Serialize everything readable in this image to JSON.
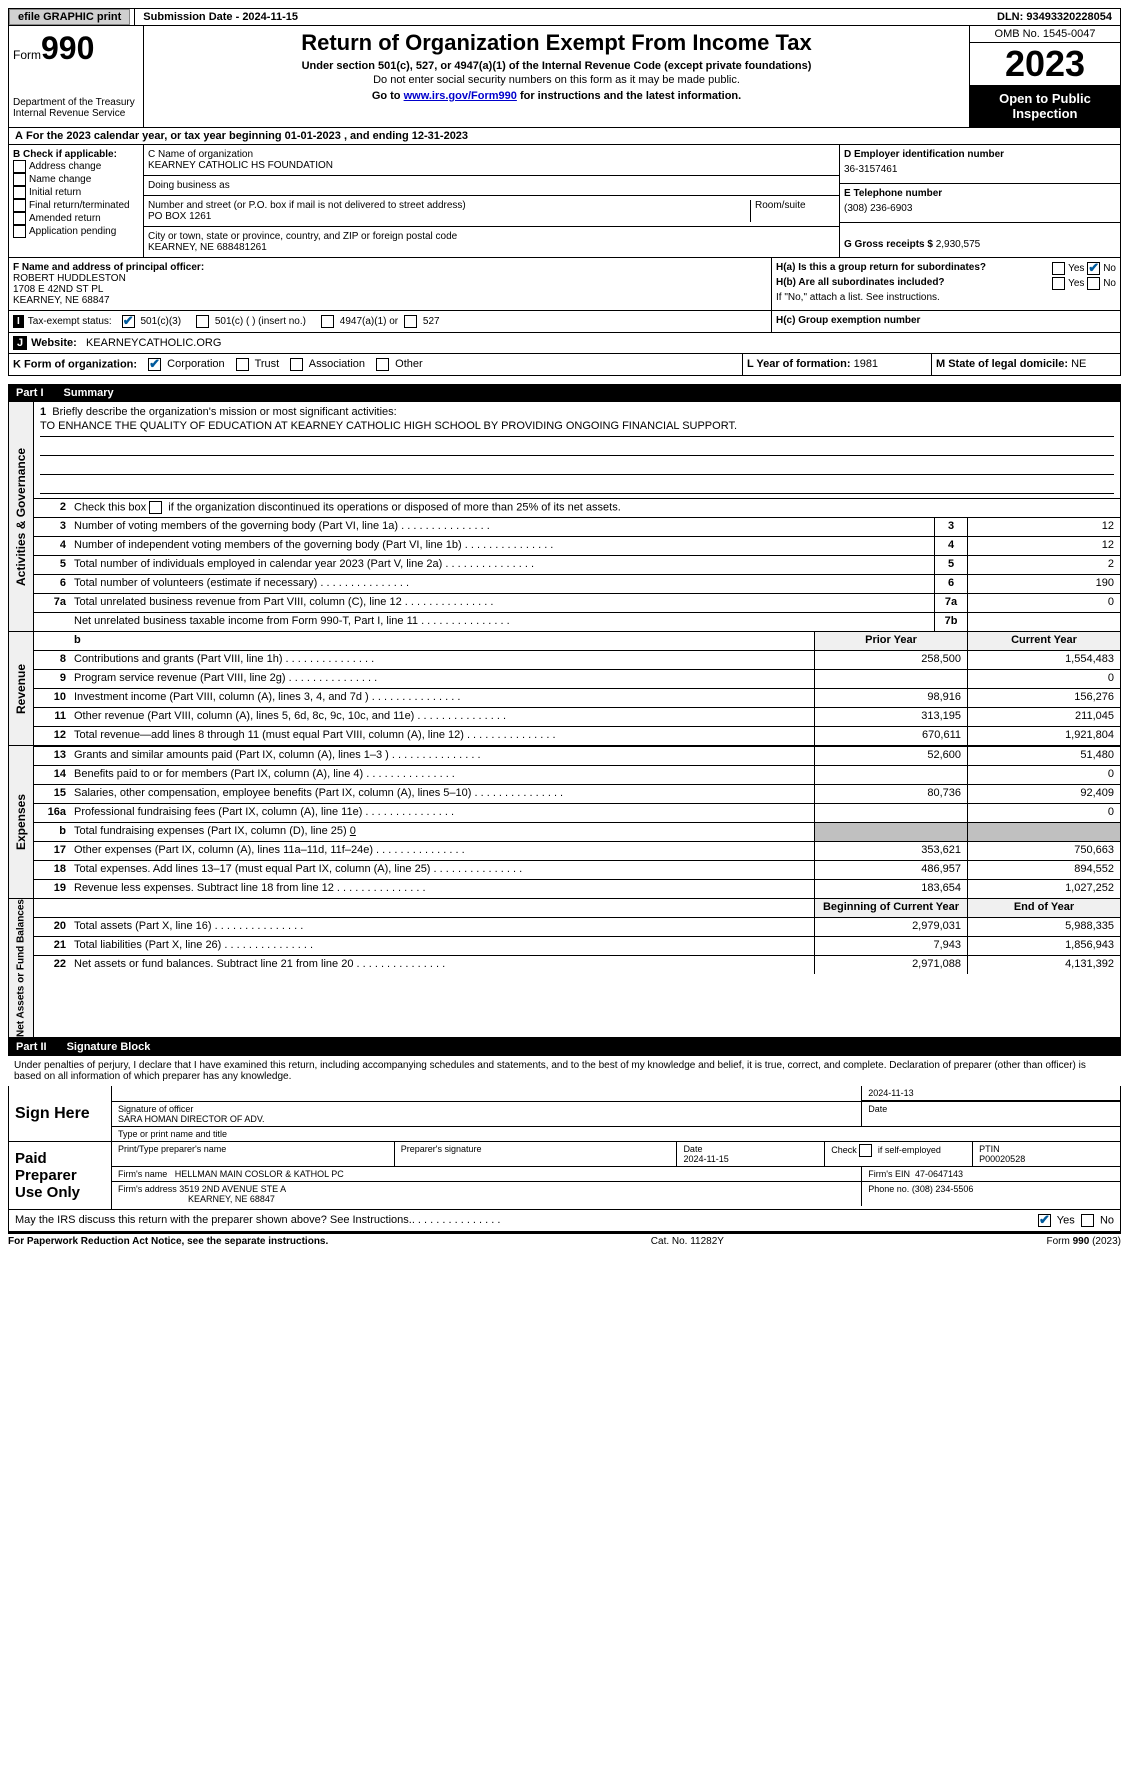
{
  "topbar": {
    "efile": "efile GRAPHIC print",
    "submission": "Submission Date - 2024-11-15",
    "dln": "DLN: 93493320228054"
  },
  "header": {
    "form_label": "Form",
    "form_no": "990",
    "title": "Return of Organization Exempt From Income Tax",
    "subtitle": "Under section 501(c), 527, or 4947(a)(1) of the Internal Revenue Code (except private foundations)",
    "ssn": "Do not enter social security numbers on this form as it may be made public.",
    "goto_pre": "Go to ",
    "goto_link": "www.irs.gov/Form990",
    "goto_post": " for instructions and the latest information.",
    "dept": "Department of the Treasury",
    "irs": "Internal Revenue Service",
    "omb": "OMB No. 1545-0047",
    "year": "2023",
    "open": "Open to Public Inspection"
  },
  "a": {
    "text": "For the 2023 calendar year, or tax year beginning 01-01-2023   , and ending 12-31-2023"
  },
  "b": {
    "hdr": "B Check if applicable:",
    "items": [
      "Address change",
      "Name change",
      "Initial return",
      "Final return/terminated",
      "Amended return",
      "Application pending"
    ]
  },
  "c": {
    "name_lbl": "C Name of organization",
    "name": "KEARNEY CATHOLIC HS FOUNDATION",
    "dba_lbl": "Doing business as",
    "dba": "",
    "street_lbl": "Number and street (or P.O. box if mail is not delivered to street address)",
    "room_lbl": "Room/suite",
    "street": "PO BOX 1261",
    "city_lbl": "City or town, state or province, country, and ZIP or foreign postal code",
    "city": "KEARNEY, NE  688481261"
  },
  "d": {
    "lbl": "D Employer identification number",
    "val": "36-3157461"
  },
  "e": {
    "lbl": "E Telephone number",
    "val": "(308) 236-6903"
  },
  "g": {
    "lbl": "G Gross receipts $",
    "val": "2,930,575"
  },
  "f": {
    "lbl": "F  Name and address of principal officer:",
    "name": "ROBERT HUDDLESTON",
    "addr1": "1708 E 42ND ST PL",
    "addr2": "KEARNEY, NE  68847"
  },
  "h": {
    "a_lbl": "H(a)  Is this a group return for subordinates?",
    "a_yes": "Yes",
    "a_no": "No",
    "b_lbl": "H(b)  Are all subordinates included?",
    "b_yes": "Yes",
    "b_no": "No",
    "b_note": "If \"No,\" attach a list. See instructions.",
    "c_lbl": "H(c)  Group exemption number"
  },
  "i": {
    "lbl": "Tax-exempt status:",
    "o1": "501(c)(3)",
    "o2": "501(c) (  ) (insert no.)",
    "o3": "4947(a)(1) or",
    "o4": "527"
  },
  "j": {
    "lbl": "Website:",
    "val": "KEARNEYCATHOLIC.ORG"
  },
  "k": {
    "lbl": "K Form of organization:",
    "o1": "Corporation",
    "o2": "Trust",
    "o3": "Association",
    "o4": "Other"
  },
  "l": {
    "lbl": "L Year of formation:",
    "val": "1981"
  },
  "m": {
    "lbl": "M State of legal domicile:",
    "val": "NE"
  },
  "part1": {
    "num": "Part I",
    "title": "Summary"
  },
  "tabs": {
    "gov": "Activities & Governance",
    "rev": "Revenue",
    "exp": "Expenses",
    "net": "Net Assets or Fund Balances"
  },
  "s1": {
    "num": "1",
    "lbl": "Briefly describe the organization's mission or most significant activities:",
    "val": "TO ENHANCE THE QUALITY OF EDUCATION AT KEARNEY CATHOLIC HIGH SCHOOL BY PROVIDING ONGOING FINANCIAL SUPPORT."
  },
  "s2": {
    "num": "2",
    "lbl": "Check this box",
    "lbl2": "if the organization discontinued its operations or disposed of more than 25% of its net assets."
  },
  "rows_gov": [
    {
      "n": "3",
      "d": "Number of voting members of the governing body (Part VI, line 1a)",
      "b": "3",
      "v": "12"
    },
    {
      "n": "4",
      "d": "Number of independent voting members of the governing body (Part VI, line 1b)",
      "b": "4",
      "v": "12"
    },
    {
      "n": "5",
      "d": "Total number of individuals employed in calendar year 2023 (Part V, line 2a)",
      "b": "5",
      "v": "2"
    },
    {
      "n": "6",
      "d": "Total number of volunteers (estimate if necessary)",
      "b": "6",
      "v": "190"
    },
    {
      "n": "7a",
      "d": "Total unrelated business revenue from Part VIII, column (C), line 12",
      "b": "7a",
      "v": "0"
    },
    {
      "n": "",
      "d": "Net unrelated business taxable income from Form 990-T, Part I, line 11",
      "b": "7b",
      "v": ""
    }
  ],
  "hdrs": {
    "prior": "Prior Year",
    "curr": "Current Year",
    "beg": "Beginning of Current Year",
    "end": "End of Year"
  },
  "rows_rev": [
    {
      "n": "8",
      "d": "Contributions and grants (Part VIII, line 1h)",
      "p": "258,500",
      "c": "1,554,483"
    },
    {
      "n": "9",
      "d": "Program service revenue (Part VIII, line 2g)",
      "p": "",
      "c": "0"
    },
    {
      "n": "10",
      "d": "Investment income (Part VIII, column (A), lines 3, 4, and 7d )",
      "p": "98,916",
      "c": "156,276"
    },
    {
      "n": "11",
      "d": "Other revenue (Part VIII, column (A), lines 5, 6d, 8c, 9c, 10c, and 11e)",
      "p": "313,195",
      "c": "211,045"
    },
    {
      "n": "12",
      "d": "Total revenue—add lines 8 through 11 (must equal Part VIII, column (A), line 12)",
      "p": "670,611",
      "c": "1,921,804"
    }
  ],
  "rows_exp": [
    {
      "n": "13",
      "d": "Grants and similar amounts paid (Part IX, column (A), lines 1–3 )",
      "p": "52,600",
      "c": "51,480"
    },
    {
      "n": "14",
      "d": "Benefits paid to or for members (Part IX, column (A), line 4)",
      "p": "",
      "c": "0"
    },
    {
      "n": "15",
      "d": "Salaries, other compensation, employee benefits (Part IX, column (A), lines 5–10)",
      "p": "80,736",
      "c": "92,409"
    },
    {
      "n": "16a",
      "d": "Professional fundraising fees (Part IX, column (A), line 11e)",
      "p": "",
      "c": "0"
    }
  ],
  "row16b": {
    "n": "b",
    "d": "Total fundraising expenses (Part IX, column (D), line 25)",
    "v": "0"
  },
  "rows_exp2": [
    {
      "n": "17",
      "d": "Other expenses (Part IX, column (A), lines 11a–11d, 11f–24e)",
      "p": "353,621",
      "c": "750,663"
    },
    {
      "n": "18",
      "d": "Total expenses. Add lines 13–17 (must equal Part IX, column (A), line 25)",
      "p": "486,957",
      "c": "894,552"
    },
    {
      "n": "19",
      "d": "Revenue less expenses. Subtract line 18 from line 12",
      "p": "183,654",
      "c": "1,027,252"
    }
  ],
  "rows_net": [
    {
      "n": "20",
      "d": "Total assets (Part X, line 16)",
      "p": "2,979,031",
      "c": "5,988,335"
    },
    {
      "n": "21",
      "d": "Total liabilities (Part X, line 26)",
      "p": "7,943",
      "c": "1,856,943"
    },
    {
      "n": "22",
      "d": "Net assets or fund balances. Subtract line 21 from line 20",
      "p": "2,971,088",
      "c": "4,131,392"
    }
  ],
  "part2": {
    "num": "Part II",
    "title": "Signature Block"
  },
  "perjury": "Under penalties of perjury, I declare that I have examined this return, including accompanying schedules and statements, and to the best of my knowledge and belief, it is true, correct, and complete. Declaration of preparer (other than officer) is based on all information of which preparer has any knowledge.",
  "sign": {
    "here": "Sign Here",
    "sig_lbl": "Signature of officer",
    "date_lbl": "Date",
    "date_val": "2024-11-13",
    "name": "SARA HOMAN  DIRECTOR OF ADV.",
    "name_lbl": "Type or print name and title"
  },
  "paid": {
    "hdr": "Paid Preparer Use Only",
    "c1": "Print/Type preparer's name",
    "c2": "Preparer's signature",
    "c3": "Date",
    "c3v": "2024-11-15",
    "c4": "Check",
    "c4b": "if self-employed",
    "c5": "PTIN",
    "c5v": "P00020528",
    "firm_lbl": "Firm's name",
    "firm": "HELLMAN MAIN COSLOR & KATHOL PC",
    "ein_lbl": "Firm's EIN",
    "ein": "47-0647143",
    "addr_lbl": "Firm's address",
    "addr1": "3519 2ND AVENUE STE A",
    "addr2": "KEARNEY, NE  68847",
    "phone_lbl": "Phone no.",
    "phone": "(308) 234-5506"
  },
  "discuss": {
    "q": "May the IRS discuss this return with the preparer shown above? See Instructions.",
    "yes": "Yes",
    "no": "No"
  },
  "footer": {
    "pra": "For Paperwork Reduction Act Notice, see the separate instructions.",
    "cat": "Cat. No. 11282Y",
    "form": "Form 990 (2023)"
  }
}
